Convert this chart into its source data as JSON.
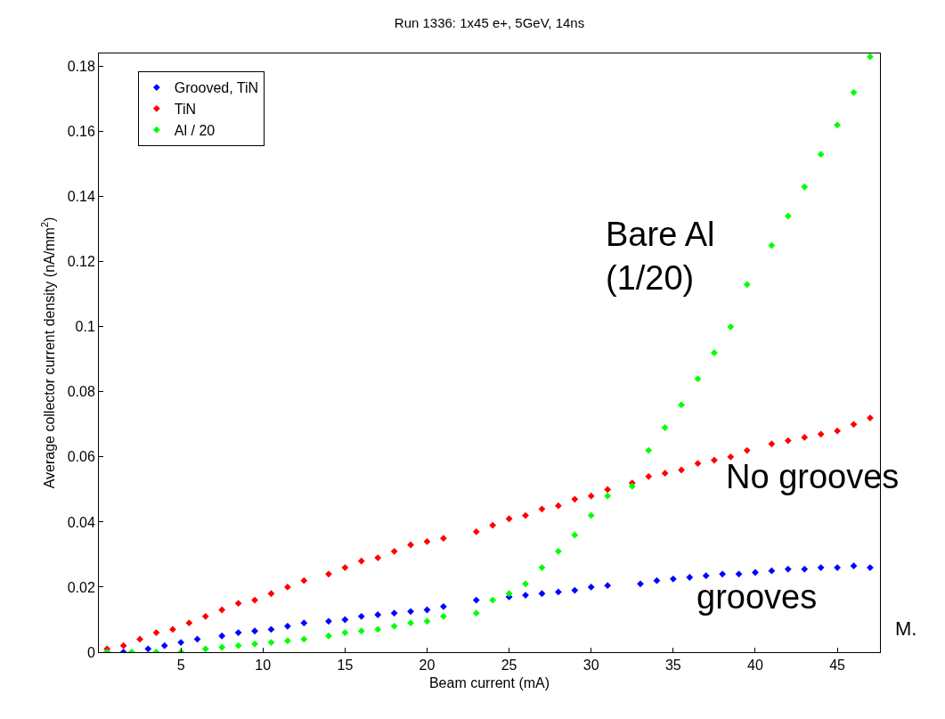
{
  "chart_data": {
    "type": "scatter",
    "title": "Run 1336: 1x45 e+, 5GeV, 14ns",
    "xlabel": "Beam current (mA)",
    "ylabel": "Average collector current density (nA/mm$^{2}$)",
    "xlim": [
      0,
      47.6
    ],
    "ylim": [
      0,
      0.184
    ],
    "xticks": [
      5,
      10,
      15,
      20,
      25,
      30,
      35,
      40,
      45
    ],
    "yticks": [
      0,
      0.02,
      0.04,
      0.06,
      0.08,
      0.1,
      0.12,
      0.14,
      0.16,
      0.18
    ],
    "grid": false,
    "legend": "top left",
    "marker": "diamond",
    "series": [
      {
        "name": "Grooved, TiN",
        "color": "#0000ff",
        "x": [
          0.5,
          1.5,
          3,
          4,
          5,
          6,
          7.5,
          8.5,
          9.5,
          10.5,
          11.5,
          12.5,
          14,
          15,
          16,
          17,
          18,
          19,
          20,
          21,
          23,
          24,
          25,
          26,
          27,
          28,
          29,
          30,
          31,
          33,
          34,
          35,
          36,
          37,
          38,
          39,
          40,
          41,
          42,
          43,
          44,
          45,
          46,
          47
        ],
        "values": [
          0,
          0,
          0.001,
          0.002,
          0.003,
          0.004,
          0.005,
          0.006,
          0.0065,
          0.007,
          0.008,
          0.009,
          0.0095,
          0.01,
          0.011,
          0.0115,
          0.012,
          0.0125,
          0.013,
          0.014,
          0.016,
          null,
          0.017,
          0.0175,
          0.018,
          0.0185,
          0.019,
          0.02,
          0.0205,
          0.021,
          0.022,
          0.0225,
          0.023,
          0.0235,
          0.024,
          0.024,
          0.0245,
          0.025,
          0.0255,
          0.0255,
          0.026,
          0.026,
          0.0265,
          0.026
        ]
      },
      {
        "name": "TiN",
        "color": "#ff0000",
        "x": [
          0.5,
          1.5,
          2.5,
          3.5,
          4.5,
          5.5,
          6.5,
          7.5,
          8.5,
          9.5,
          10.5,
          11.5,
          12.5,
          14,
          15,
          16,
          17,
          18,
          19,
          20,
          21,
          23,
          24,
          25,
          26,
          27,
          28,
          29,
          30,
          31,
          32.5,
          33.5,
          34.5,
          35.5,
          36.5,
          37.5,
          38.5,
          39.5,
          41,
          42,
          43,
          44,
          45,
          46,
          47
        ],
        "values": [
          0.001,
          0.002,
          0.004,
          0.006,
          0.007,
          0.009,
          0.011,
          0.013,
          0.015,
          0.016,
          0.018,
          0.02,
          0.022,
          0.024,
          0.026,
          0.028,
          0.029,
          0.031,
          0.033,
          0.034,
          0.035,
          0.037,
          0.039,
          0.041,
          0.042,
          0.044,
          0.045,
          0.047,
          0.048,
          0.05,
          0.052,
          0.054,
          0.055,
          0.056,
          0.058,
          0.059,
          0.06,
          0.062,
          0.064,
          0.065,
          0.066,
          0.067,
          0.068,
          0.07,
          0.072
        ]
      },
      {
        "name": "Al / 20",
        "color": "#00ff00",
        "x": [
          0.5,
          2,
          3.5,
          5,
          6.5,
          7.5,
          8.5,
          9.5,
          10.5,
          11.5,
          12.5,
          14,
          15,
          16,
          17,
          18,
          19,
          20,
          21,
          23,
          24,
          25,
          26,
          27,
          28,
          29,
          30,
          31,
          32.5,
          33.5,
          34.5,
          35.5,
          36.5,
          37.5,
          38.5,
          39.5,
          41,
          42,
          43,
          44,
          45,
          46,
          47
        ],
        "values": [
          0,
          0,
          0,
          0,
          0.001,
          0.0015,
          0.002,
          0.0025,
          0.003,
          0.0035,
          0.004,
          0.005,
          0.006,
          0.0065,
          0.007,
          0.008,
          0.009,
          0.0095,
          0.011,
          0.012,
          0.016,
          0.018,
          0.021,
          0.026,
          0.031,
          0.036,
          0.042,
          0.048,
          0.051,
          0.062,
          0.069,
          0.076,
          0.084,
          0.092,
          0.1,
          0.113,
          0.125,
          0.134,
          0.143,
          0.153,
          0.162,
          0.172,
          0.183
        ]
      }
    ],
    "annotations": [
      "Bare Al\n(1/20)",
      "No grooves",
      "grooves",
      "M."
    ]
  }
}
